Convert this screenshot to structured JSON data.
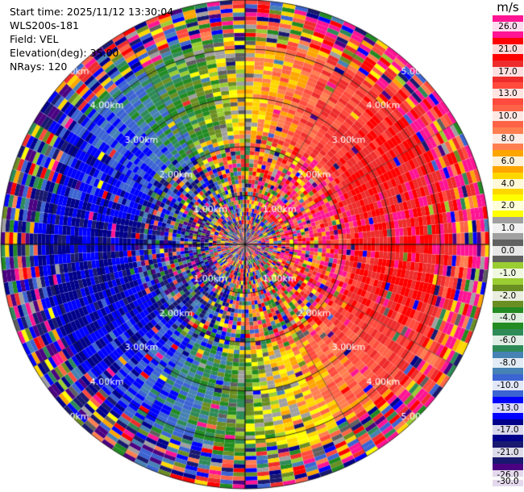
{
  "info": {
    "start_time": "Start time: 2025/11/12 13:30:04",
    "instrument": "WLS200s-181",
    "field": "Field: VEL",
    "elevation": "Elevation(deg): 35.00",
    "nrays": "NRays: 120"
  },
  "colorbar": {
    "unit": "m/s",
    "ticks": [
      "26.0",
      "21.0",
      "17.0",
      "13.0",
      "10.0",
      "8.0",
      "6.0",
      "4.0",
      "2.0",
      "1.0",
      "0.0",
      "-1.0",
      "-2.0",
      "-4.0",
      "-6.0",
      "-8.0",
      "-10.0",
      "-13.0",
      "-17.0",
      "-21.0",
      "-26.0",
      "-30.0"
    ],
    "colors": [
      "#ff1493",
      "#ff0000",
      "#ee2c2c",
      "#ff4a3d",
      "#ff6347",
      "#ff7f50",
      "#ffa500",
      "#ffd700",
      "#ffff00",
      "#a0a0a0",
      "#606060",
      "#9acd32",
      "#6b8e23",
      "#228b22",
      "#2e8b57",
      "#4682b4",
      "#3c64d2",
      "#0000ff",
      "#00008b",
      "#191970",
      "#4b0082"
    ]
  },
  "chart_data": {
    "type": "ppi",
    "field": "VEL",
    "units": "m/s",
    "elevation_deg": 35.0,
    "n_rays": 120,
    "range_rings_km": [
      1,
      2,
      3,
      4,
      5
    ],
    "range_labels": [
      "1.00km",
      "2.00km",
      "3.00km",
      "4.00km",
      "5.00km"
    ],
    "max_range_km": 5.0,
    "value_range": [
      -30,
      26
    ],
    "pattern": "radial velocity dipole: negative (blue, -17 to -21 m/s) toward azimuth ~270 deg (west), positive (red, 13 to 21 m/s) toward azimuth ~90 deg (east); noisy near center and at far range"
  }
}
